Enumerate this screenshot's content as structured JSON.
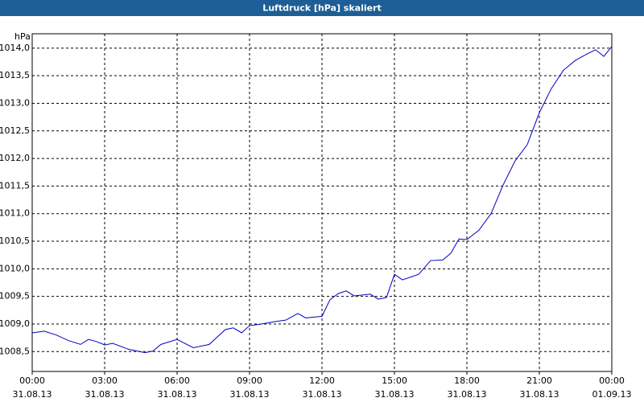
{
  "chart_data": {
    "type": "line",
    "title": "Luftdruck [hPa] skaliert",
    "y_unit": "hPa",
    "x": [
      0,
      0.5,
      1,
      1.5,
      2,
      2.33,
      2.67,
      3,
      3.33,
      4,
      4.67,
      5,
      5.33,
      6,
      6.67,
      7.33,
      8,
      8.33,
      8.67,
      9,
      9.5,
      10,
      10.5,
      11,
      11.33,
      12,
      12.33,
      12.67,
      13,
      13.33,
      14,
      14.33,
      14.67,
      15,
      15.33,
      16,
      16.5,
      17,
      17.33,
      17.67,
      18,
      18.5,
      19,
      19.5,
      20,
      20.5,
      21,
      21.5,
      22,
      22.5,
      23,
      23.33,
      23.67,
      24
    ],
    "series": [
      {
        "name": "Luftdruck",
        "color": "#0000c0",
        "values": [
          1008.84,
          1008.87,
          1008.8,
          1008.7,
          1008.63,
          1008.72,
          1008.68,
          1008.62,
          1008.65,
          1008.54,
          1008.48,
          1008.51,
          1008.63,
          1008.72,
          1008.57,
          1008.63,
          1008.9,
          1008.93,
          1008.84,
          1008.97,
          1009.0,
          1009.04,
          1009.07,
          1009.19,
          1009.11,
          1009.14,
          1009.44,
          1009.55,
          1009.6,
          1009.51,
          1009.54,
          1009.45,
          1009.48,
          1009.9,
          1009.8,
          1009.9,
          1010.15,
          1010.16,
          1010.28,
          1010.54,
          1010.53,
          1010.7,
          1011.0,
          1011.52,
          1011.96,
          1012.25,
          1012.83,
          1013.27,
          1013.6,
          1013.78,
          1013.9,
          1013.97,
          1013.85,
          1014.03
        ]
      }
    ],
    "xlim": [
      0,
      24
    ],
    "xticks": [
      {
        "value": 0,
        "label": "00:00",
        "sublabel": "31.08.13"
      },
      {
        "value": 3,
        "label": "03:00",
        "sublabel": "31.08.13"
      },
      {
        "value": 6,
        "label": "06:00",
        "sublabel": "31.08.13"
      },
      {
        "value": 9,
        "label": "09:00",
        "sublabel": "31.08.13"
      },
      {
        "value": 12,
        "label": "12:00",
        "sublabel": "31.08.13"
      },
      {
        "value": 15,
        "label": "15:00",
        "sublabel": "31.08.13"
      },
      {
        "value": 18,
        "label": "18:00",
        "sublabel": "31.08.13"
      },
      {
        "value": 21,
        "label": "21:00",
        "sublabel": "31.08.13"
      },
      {
        "value": 24,
        "label": "00:00",
        "sublabel": "01.09.13"
      }
    ],
    "ylim": [
      1008.14,
      1014.26
    ],
    "yticks": [
      {
        "value": 1008.5,
        "label": "1008,5"
      },
      {
        "value": 1009,
        "label": "1009,0"
      },
      {
        "value": 1009.5,
        "label": "1009,5"
      },
      {
        "value": 1010,
        "label": "1010,0"
      },
      {
        "value": 1010.5,
        "label": "1010,5"
      },
      {
        "value": 1011,
        "label": "1011,0"
      },
      {
        "value": 1011.5,
        "label": "1011,5"
      },
      {
        "value": 1012,
        "label": "1012,0"
      },
      {
        "value": 1012.5,
        "label": "1012,5"
      },
      {
        "value": 1013,
        "label": "1013,0"
      },
      {
        "value": 1013.5,
        "label": "1013,5"
      },
      {
        "value": 1014,
        "label": "1014,0"
      }
    ],
    "grid": true
  }
}
